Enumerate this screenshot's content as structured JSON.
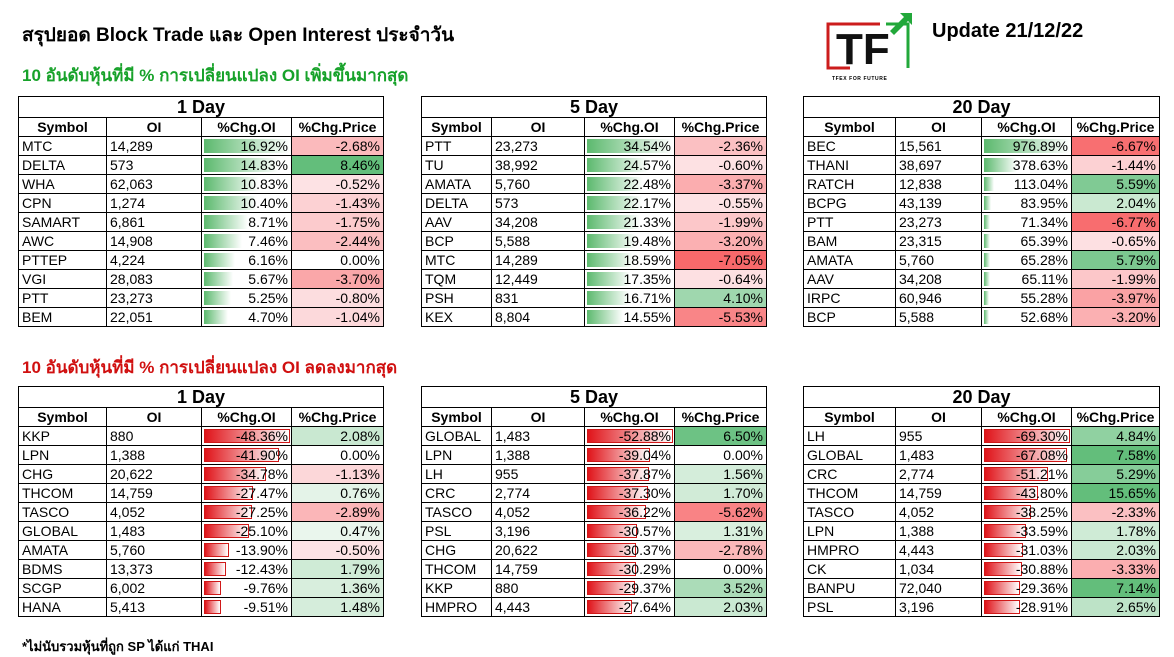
{
  "title": "สรุปยอด Block Trade และ Open Interest ประจำวัน",
  "update": "Update 21/12/22",
  "logo": {
    "letters": "TF",
    "tagline": "TFEX FOR FUTURE"
  },
  "top_section": "10 อันดับหุ้นที่มี % การเปลี่ยนแปลง OI เพิ่มขึ้นมากสุด",
  "bottom_section": "10 อันดับหุ้นที่มี % การเปลี่ยนแปลง OI ลดลงมากสุด",
  "footnote": "*ไม่นับรวมหุ้นที่ถูก SP ได้แก่ THAI",
  "headers": {
    "symbol": "Symbol",
    "oi": "OI",
    "chg_oi": "%Chg.OI",
    "chg_price": "%Chg.Price"
  },
  "colors": {
    "positive_bar": "#5cb96e",
    "negative_bar": "#e0141a",
    "up_title": "#17a22a",
    "down_title": "#d01010"
  },
  "tables": [
    {
      "period": "1 Day",
      "scale_max": 16.92,
      "rows": [
        {
          "symbol": "MTC",
          "oi": "14,289",
          "chg_oi": 16.92,
          "chg_oi_text": "16.92%",
          "chg_price": -2.68,
          "chg_price_text": "-2.68%"
        },
        {
          "symbol": "DELTA",
          "oi": "573",
          "chg_oi": 14.83,
          "chg_oi_text": "14.83%",
          "chg_price": 8.46,
          "chg_price_text": "8.46%"
        },
        {
          "symbol": "WHA",
          "oi": "62,063",
          "chg_oi": 10.83,
          "chg_oi_text": "10.83%",
          "chg_price": -0.52,
          "chg_price_text": "-0.52%"
        },
        {
          "symbol": "CPN",
          "oi": "1,274",
          "chg_oi": 10.4,
          "chg_oi_text": "10.40%",
          "chg_price": -1.43,
          "chg_price_text": "-1.43%"
        },
        {
          "symbol": "SAMART",
          "oi": "6,861",
          "chg_oi": 8.71,
          "chg_oi_text": "8.71%",
          "chg_price": -1.75,
          "chg_price_text": "-1.75%"
        },
        {
          "symbol": "AWC",
          "oi": "14,908",
          "chg_oi": 7.46,
          "chg_oi_text": "7.46%",
          "chg_price": -2.44,
          "chg_price_text": "-2.44%"
        },
        {
          "symbol": "PTTEP",
          "oi": "4,224",
          "chg_oi": 6.16,
          "chg_oi_text": "6.16%",
          "chg_price": 0.0,
          "chg_price_text": "0.00%"
        },
        {
          "symbol": "VGI",
          "oi": "28,083",
          "chg_oi": 5.67,
          "chg_oi_text": "5.67%",
          "chg_price": -3.7,
          "chg_price_text": "-3.70%"
        },
        {
          "symbol": "PTT",
          "oi": "23,273",
          "chg_oi": 5.25,
          "chg_oi_text": "5.25%",
          "chg_price": -0.8,
          "chg_price_text": "-0.80%"
        },
        {
          "symbol": "BEM",
          "oi": "22,051",
          "chg_oi": 4.7,
          "chg_oi_text": "4.70%",
          "chg_price": -1.04,
          "chg_price_text": "-1.04%"
        }
      ]
    },
    {
      "period": "5 Day",
      "scale_max": 34.54,
      "rows": [
        {
          "symbol": "PTT",
          "oi": "23,273",
          "chg_oi": 34.54,
          "chg_oi_text": "34.54%",
          "chg_price": -2.36,
          "chg_price_text": "-2.36%"
        },
        {
          "symbol": "TU",
          "oi": "38,992",
          "chg_oi": 24.57,
          "chg_oi_text": "24.57%",
          "chg_price": -0.6,
          "chg_price_text": "-0.60%"
        },
        {
          "symbol": "AMATA",
          "oi": "5,760",
          "chg_oi": 22.48,
          "chg_oi_text": "22.48%",
          "chg_price": -3.37,
          "chg_price_text": "-3.37%"
        },
        {
          "symbol": "DELTA",
          "oi": "573",
          "chg_oi": 22.17,
          "chg_oi_text": "22.17%",
          "chg_price": -0.55,
          "chg_price_text": "-0.55%"
        },
        {
          "symbol": "AAV",
          "oi": "34,208",
          "chg_oi": 21.33,
          "chg_oi_text": "21.33%",
          "chg_price": -1.99,
          "chg_price_text": "-1.99%"
        },
        {
          "symbol": "BCP",
          "oi": "5,588",
          "chg_oi": 19.48,
          "chg_oi_text": "19.48%",
          "chg_price": -3.2,
          "chg_price_text": "-3.20%"
        },
        {
          "symbol": "MTC",
          "oi": "14,289",
          "chg_oi": 18.59,
          "chg_oi_text": "18.59%",
          "chg_price": -7.05,
          "chg_price_text": "-7.05%"
        },
        {
          "symbol": "TQM",
          "oi": "12,449",
          "chg_oi": 17.35,
          "chg_oi_text": "17.35%",
          "chg_price": -0.64,
          "chg_price_text": "-0.64%"
        },
        {
          "symbol": "PSH",
          "oi": "831",
          "chg_oi": 16.71,
          "chg_oi_text": "16.71%",
          "chg_price": 4.1,
          "chg_price_text": "4.10%"
        },
        {
          "symbol": "KEX",
          "oi": "8,804",
          "chg_oi": 14.55,
          "chg_oi_text": "14.55%",
          "chg_price": -5.53,
          "chg_price_text": "-5.53%"
        }
      ]
    },
    {
      "period": "20 Day",
      "scale_max": 976.89,
      "rows": [
        {
          "symbol": "BEC",
          "oi": "15,561",
          "chg_oi": 976.89,
          "chg_oi_text": "976.89%",
          "chg_price": -6.67,
          "chg_price_text": "-6.67%"
        },
        {
          "symbol": "THANI",
          "oi": "38,697",
          "chg_oi": 378.63,
          "chg_oi_text": "378.63%",
          "chg_price": -1.44,
          "chg_price_text": "-1.44%"
        },
        {
          "symbol": "RATCH",
          "oi": "12,838",
          "chg_oi": 113.04,
          "chg_oi_text": "113.04%",
          "chg_price": 5.59,
          "chg_price_text": "5.59%"
        },
        {
          "symbol": "BCPG",
          "oi": "43,139",
          "chg_oi": 83.95,
          "chg_oi_text": "83.95%",
          "chg_price": 2.04,
          "chg_price_text": "2.04%"
        },
        {
          "symbol": "PTT",
          "oi": "23,273",
          "chg_oi": 71.34,
          "chg_oi_text": "71.34%",
          "chg_price": -6.77,
          "chg_price_text": "-6.77%"
        },
        {
          "symbol": "BAM",
          "oi": "23,315",
          "chg_oi": 65.39,
          "chg_oi_text": "65.39%",
          "chg_price": -0.65,
          "chg_price_text": "-0.65%"
        },
        {
          "symbol": "AMATA",
          "oi": "5,760",
          "chg_oi": 65.28,
          "chg_oi_text": "65.28%",
          "chg_price": 5.79,
          "chg_price_text": "5.79%"
        },
        {
          "symbol": "AAV",
          "oi": "34,208",
          "chg_oi": 65.11,
          "chg_oi_text": "65.11%",
          "chg_price": -1.99,
          "chg_price_text": "-1.99%"
        },
        {
          "symbol": "IRPC",
          "oi": "60,946",
          "chg_oi": 55.28,
          "chg_oi_text": "55.28%",
          "chg_price": -3.97,
          "chg_price_text": "-3.97%"
        },
        {
          "symbol": "BCP",
          "oi": "5,588",
          "chg_oi": 52.68,
          "chg_oi_text": "52.68%",
          "chg_price": -3.2,
          "chg_price_text": "-3.20%"
        }
      ]
    },
    {
      "period": "1 Day",
      "scale_max": 48.36,
      "rows": [
        {
          "symbol": "KKP",
          "oi": "880",
          "chg_oi": -48.36,
          "chg_oi_text": "-48.36%",
          "chg_price": 2.08,
          "chg_price_text": "2.08%"
        },
        {
          "symbol": "LPN",
          "oi": "1,388",
          "chg_oi": -41.9,
          "chg_oi_text": "-41.90%",
          "chg_price": 0.0,
          "chg_price_text": "0.00%"
        },
        {
          "symbol": "CHG",
          "oi": "20,622",
          "chg_oi": -34.78,
          "chg_oi_text": "-34.78%",
          "chg_price": -1.13,
          "chg_price_text": "-1.13%"
        },
        {
          "symbol": "THCOM",
          "oi": "14,759",
          "chg_oi": -27.47,
          "chg_oi_text": "-27.47%",
          "chg_price": 0.76,
          "chg_price_text": "0.76%"
        },
        {
          "symbol": "TASCO",
          "oi": "4,052",
          "chg_oi": -27.25,
          "chg_oi_text": "-27.25%",
          "chg_price": -2.89,
          "chg_price_text": "-2.89%"
        },
        {
          "symbol": "GLOBAL",
          "oi": "1,483",
          "chg_oi": -25.1,
          "chg_oi_text": "-25.10%",
          "chg_price": 0.47,
          "chg_price_text": "0.47%"
        },
        {
          "symbol": "AMATA",
          "oi": "5,760",
          "chg_oi": -13.9,
          "chg_oi_text": "-13.90%",
          "chg_price": -0.5,
          "chg_price_text": "-0.50%"
        },
        {
          "symbol": "BDMS",
          "oi": "13,373",
          "chg_oi": -12.43,
          "chg_oi_text": "-12.43%",
          "chg_price": 1.79,
          "chg_price_text": "1.79%"
        },
        {
          "symbol": "SCGP",
          "oi": "6,002",
          "chg_oi": -9.76,
          "chg_oi_text": "-9.76%",
          "chg_price": 1.36,
          "chg_price_text": "1.36%"
        },
        {
          "symbol": "HANA",
          "oi": "5,413",
          "chg_oi": -9.51,
          "chg_oi_text": "-9.51%",
          "chg_price": 1.48,
          "chg_price_text": "1.48%"
        }
      ]
    },
    {
      "period": "5 Day",
      "scale_max": 52.88,
      "rows": [
        {
          "symbol": "GLOBAL",
          "oi": "1,483",
          "chg_oi": -52.88,
          "chg_oi_text": "-52.88%",
          "chg_price": 6.5,
          "chg_price_text": "6.50%"
        },
        {
          "symbol": "LPN",
          "oi": "1,388",
          "chg_oi": -39.04,
          "chg_oi_text": "-39.04%",
          "chg_price": 0.0,
          "chg_price_text": "0.00%"
        },
        {
          "symbol": "LH",
          "oi": "955",
          "chg_oi": -37.87,
          "chg_oi_text": "-37.87%",
          "chg_price": 1.56,
          "chg_price_text": "1.56%"
        },
        {
          "symbol": "CRC",
          "oi": "2,774",
          "chg_oi": -37.3,
          "chg_oi_text": "-37.30%",
          "chg_price": 1.7,
          "chg_price_text": "1.70%"
        },
        {
          "symbol": "TASCO",
          "oi": "4,052",
          "chg_oi": -36.22,
          "chg_oi_text": "-36.22%",
          "chg_price": -5.62,
          "chg_price_text": "-5.62%"
        },
        {
          "symbol": "PSL",
          "oi": "3,196",
          "chg_oi": -30.57,
          "chg_oi_text": "-30.57%",
          "chg_price": 1.31,
          "chg_price_text": "1.31%"
        },
        {
          "symbol": "CHG",
          "oi": "20,622",
          "chg_oi": -30.37,
          "chg_oi_text": "-30.37%",
          "chg_price": -2.78,
          "chg_price_text": "-2.78%"
        },
        {
          "symbol": "THCOM",
          "oi": "14,759",
          "chg_oi": -30.29,
          "chg_oi_text": "-30.29%",
          "chg_price": 0.0,
          "chg_price_text": "0.00%"
        },
        {
          "symbol": "KKP",
          "oi": "880",
          "chg_oi": -29.37,
          "chg_oi_text": "-29.37%",
          "chg_price": 3.52,
          "chg_price_text": "3.52%"
        },
        {
          "symbol": "HMPRO",
          "oi": "4,443",
          "chg_oi": -27.64,
          "chg_oi_text": "-27.64%",
          "chg_price": 2.03,
          "chg_price_text": "2.03%"
        }
      ]
    },
    {
      "period": "20 Day",
      "scale_max": 69.3,
      "rows": [
        {
          "symbol": "LH",
          "oi": "955",
          "chg_oi": -69.3,
          "chg_oi_text": "-69.30%",
          "chg_price": 4.84,
          "chg_price_text": "4.84%"
        },
        {
          "symbol": "GLOBAL",
          "oi": "1,483",
          "chg_oi": -67.08,
          "chg_oi_text": "-67.08%",
          "chg_price": 7.58,
          "chg_price_text": "7.58%"
        },
        {
          "symbol": "CRC",
          "oi": "2,774",
          "chg_oi": -51.21,
          "chg_oi_text": "-51.21%",
          "chg_price": 5.29,
          "chg_price_text": "5.29%"
        },
        {
          "symbol": "THCOM",
          "oi": "14,759",
          "chg_oi": -43.8,
          "chg_oi_text": "-43.80%",
          "chg_price": 15.65,
          "chg_price_text": "15.65%"
        },
        {
          "symbol": "TASCO",
          "oi": "4,052",
          "chg_oi": -38.25,
          "chg_oi_text": "-38.25%",
          "chg_price": -2.33,
          "chg_price_text": "-2.33%"
        },
        {
          "symbol": "LPN",
          "oi": "1,388",
          "chg_oi": -33.59,
          "chg_oi_text": "-33.59%",
          "chg_price": 1.78,
          "chg_price_text": "1.78%"
        },
        {
          "symbol": "HMPRO",
          "oi": "4,443",
          "chg_oi": -31.03,
          "chg_oi_text": "-31.03%",
          "chg_price": 2.03,
          "chg_price_text": "2.03%"
        },
        {
          "symbol": "CK",
          "oi": "1,034",
          "chg_oi": -30.88,
          "chg_oi_text": "-30.88%",
          "chg_price": -3.33,
          "chg_price_text": "-3.33%"
        },
        {
          "symbol": "BANPU",
          "oi": "72,040",
          "chg_oi": -29.36,
          "chg_oi_text": "-29.36%",
          "chg_price": 7.14,
          "chg_price_text": "7.14%"
        },
        {
          "symbol": "PSL",
          "oi": "3,196",
          "chg_oi": -28.91,
          "chg_oi_text": "-28.91%",
          "chg_price": 2.65,
          "chg_price_text": "2.65%"
        }
      ]
    }
  ]
}
